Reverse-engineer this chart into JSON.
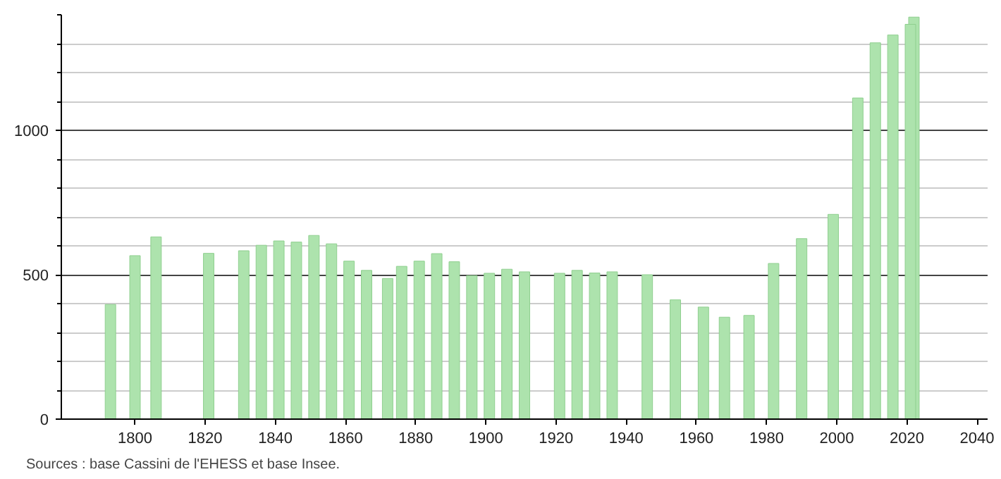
{
  "chart_data": {
    "type": "bar",
    "x": [
      1793,
      1800,
      1806,
      1821,
      1831,
      1836,
      1841,
      1846,
      1851,
      1856,
      1861,
      1866,
      1872,
      1876,
      1881,
      1886,
      1891,
      1896,
      1901,
      1906,
      1911,
      1921,
      1926,
      1931,
      1936,
      1946,
      1954,
      1962,
      1968,
      1975,
      1982,
      1990,
      1999,
      2006,
      2011,
      2016,
      2021,
      2022
    ],
    "values": [
      397,
      566,
      631,
      574,
      583,
      602,
      617,
      613,
      636,
      607,
      547,
      515,
      487,
      529,
      547,
      573,
      545,
      497,
      505,
      519,
      510,
      505,
      515,
      506,
      510,
      500,
      413,
      388,
      353,
      359,
      539,
      625,
      709,
      1112,
      1303,
      1330,
      1367,
      1392
    ],
    "color": "#ade3ad",
    "xlim": [
      1779,
      2043
    ],
    "xticks": [
      1800,
      1820,
      1840,
      1860,
      1880,
      1900,
      1920,
      1940,
      1960,
      1980,
      2000,
      2020,
      2040
    ],
    "ylim": [
      0,
      1400
    ],
    "yticks": [
      0,
      {
        "value": 100,
        "label": null
      },
      {
        "value": 200,
        "label": null
      },
      {
        "value": 300,
        "label": null
      },
      {
        "value": 400,
        "label": null
      },
      500,
      {
        "value": 600,
        "label": null
      },
      {
        "value": 700,
        "label": null
      },
      {
        "value": 800,
        "label": null
      },
      {
        "value": 900,
        "label": null
      },
      1000,
      {
        "value": 1100,
        "label": null
      },
      {
        "value": 1200,
        "label": null
      },
      {
        "value": 1300,
        "label": null
      },
      {
        "value": 1400,
        "label": null
      }
    ],
    "grid": "y",
    "annotations": [
      "Sources : base Cassini de l'EHESS et base Insee."
    ]
  }
}
